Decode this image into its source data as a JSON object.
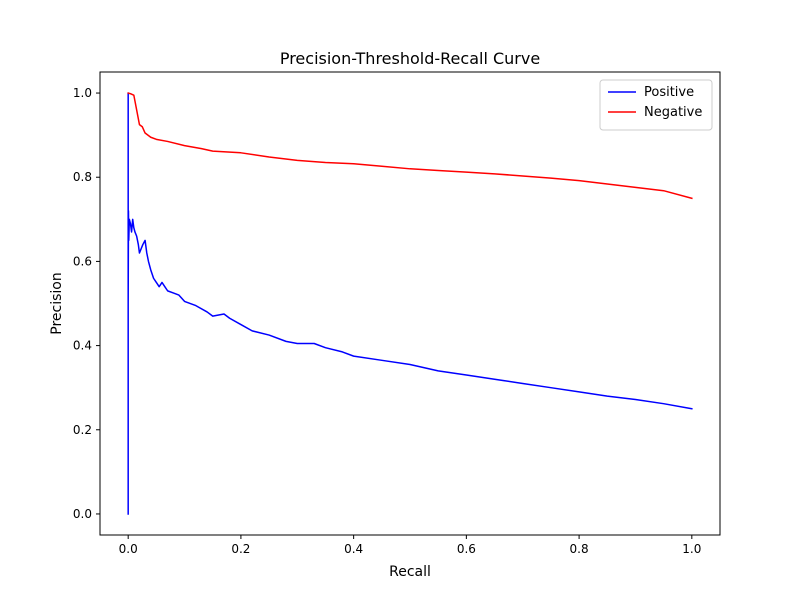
{
  "chart_data": {
    "type": "line",
    "title": "Precision-Threshold-Recall Curve",
    "xlabel": "Recall",
    "ylabel": "Precision",
    "xlim": [
      -0.05,
      1.05
    ],
    "ylim": [
      -0.05,
      1.05
    ],
    "xticks": [
      0.0,
      0.2,
      0.4,
      0.6,
      0.8,
      1.0
    ],
    "xtick_labels": [
      "0.0",
      "0.2",
      "0.4",
      "0.6",
      "0.8",
      "1.0"
    ],
    "yticks": [
      0.0,
      0.2,
      0.4,
      0.6,
      0.8,
      1.0
    ],
    "ytick_labels": [
      "0.0",
      "0.2",
      "0.4",
      "0.6",
      "0.8",
      "1.0"
    ],
    "grid": false,
    "legend_position": "top-right",
    "series": [
      {
        "name": "Positive",
        "color": "#0000ff",
        "x": [
          0.0,
          0.0,
          0.0,
          0.0005,
          0.001,
          0.002,
          0.004,
          0.006,
          0.008,
          0.01,
          0.012,
          0.015,
          0.018,
          0.02,
          0.023,
          0.026,
          0.03,
          0.033,
          0.036,
          0.04,
          0.045,
          0.05,
          0.055,
          0.06,
          0.065,
          0.07,
          0.08,
          0.09,
          0.1,
          0.12,
          0.14,
          0.15,
          0.17,
          0.18,
          0.2,
          0.22,
          0.25,
          0.28,
          0.3,
          0.33,
          0.35,
          0.38,
          0.4,
          0.45,
          0.5,
          0.55,
          0.6,
          0.65,
          0.7,
          0.75,
          0.8,
          0.85,
          0.9,
          0.95,
          1.0
        ],
        "y": [
          0.0,
          1.0,
          0.5,
          0.72,
          0.65,
          0.7,
          0.69,
          0.67,
          0.7,
          0.68,
          0.67,
          0.66,
          0.64,
          0.62,
          0.63,
          0.64,
          0.65,
          0.62,
          0.6,
          0.58,
          0.56,
          0.55,
          0.54,
          0.55,
          0.54,
          0.53,
          0.525,
          0.52,
          0.505,
          0.495,
          0.48,
          0.47,
          0.475,
          0.465,
          0.45,
          0.435,
          0.425,
          0.41,
          0.405,
          0.405,
          0.395,
          0.385,
          0.375,
          0.365,
          0.355,
          0.34,
          0.33,
          0.32,
          0.31,
          0.3,
          0.29,
          0.28,
          0.272,
          0.262,
          0.25
        ]
      },
      {
        "name": "Negative",
        "color": "#ff0000",
        "x": [
          0.0,
          0.005,
          0.01,
          0.015,
          0.02,
          0.025,
          0.03,
          0.04,
          0.05,
          0.07,
          0.1,
          0.13,
          0.15,
          0.2,
          0.25,
          0.3,
          0.35,
          0.4,
          0.45,
          0.5,
          0.55,
          0.6,
          0.65,
          0.7,
          0.75,
          0.8,
          0.85,
          0.9,
          0.95,
          1.0
        ],
        "y": [
          1.0,
          0.998,
          0.995,
          0.96,
          0.925,
          0.92,
          0.905,
          0.895,
          0.89,
          0.885,
          0.875,
          0.868,
          0.862,
          0.858,
          0.848,
          0.84,
          0.835,
          0.832,
          0.826,
          0.82,
          0.816,
          0.812,
          0.808,
          0.803,
          0.798,
          0.792,
          0.784,
          0.776,
          0.768,
          0.75
        ]
      }
    ]
  }
}
